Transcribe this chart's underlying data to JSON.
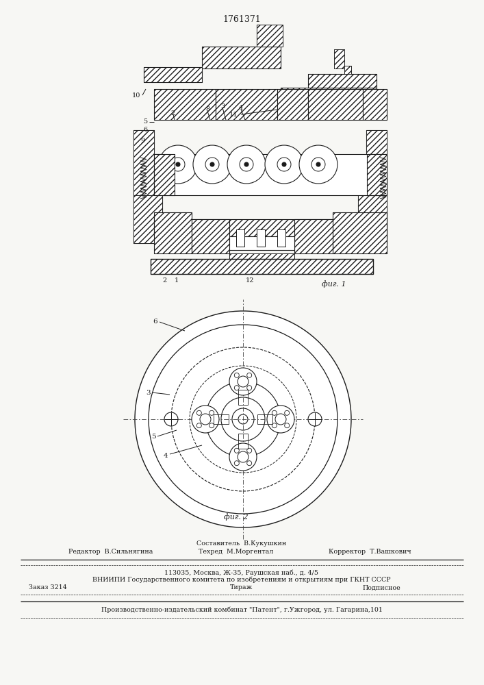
{
  "title": "1761371",
  "bg_color": "#f7f7f4",
  "fig_label1": "фиг. 1",
  "fig_label2": "фиг. 2",
  "footer_line1": "Составитель  В.Кукушкин",
  "footer_line2a": "Редактор  В.Сильнягина",
  "footer_line2b": "Техред  М.Моргентал",
  "footer_line2c": "Корректор  Т.Вашкович",
  "footer_line3a": "Заказ 3214",
  "footer_line3b": "Тираж",
  "footer_line3c": "Подписное",
  "footer_line4": "ВНИИПИ Государственного комитета по изобретениям и открытиям при ГКНТ СССР",
  "footer_line5": "113035, Москва, Ж-35, Раушская наб., д. 4/5",
  "footer_line6": "Производственно-издательский комбинат \"Патент\", г.Ужгород, ул. Гагарина,101",
  "line_color": "#1a1a1a",
  "text_color": "#1a1a1a"
}
